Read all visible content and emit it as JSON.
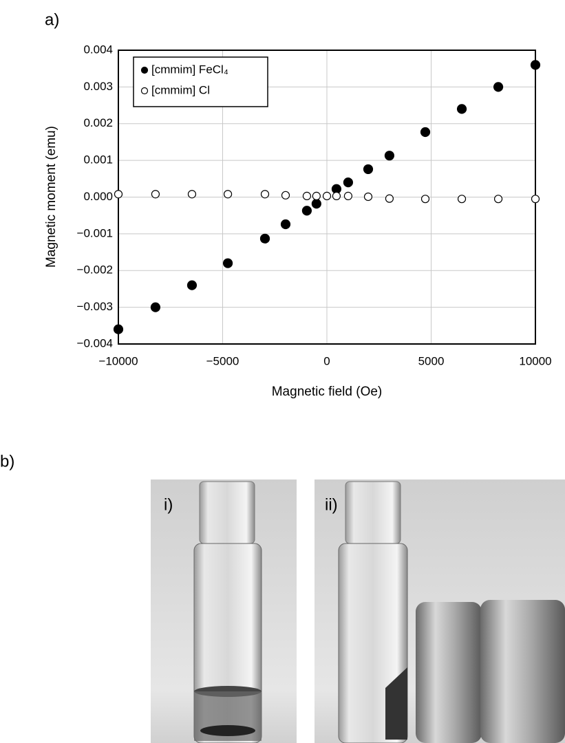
{
  "panel_labels": {
    "a": "a)",
    "b": "b)",
    "i": "i)",
    "ii": "ii)"
  },
  "chart_data": {
    "type": "scatter",
    "xlabel": "Magnetic field (Oe)",
    "ylabel": "Magnetic moment (emu)",
    "xlim": [
      -10000,
      10000
    ],
    "ylim": [
      -0.004,
      0.004
    ],
    "xticks": [
      {
        "value": -10000,
        "label": "−10000"
      },
      {
        "value": -5000,
        "label": "−5000"
      },
      0,
      5000,
      10000
    ],
    "yticks": [
      {
        "value": -0.004,
        "label": "−0.004"
      },
      {
        "value": -0.003,
        "label": "−0.003"
      },
      {
        "value": -0.002,
        "label": "−0.002"
      },
      {
        "value": -0.001,
        "label": "−0.001"
      },
      {
        "value": 0,
        "label": "0.000"
      },
      0.001,
      0.002,
      0.003,
      0.004
    ],
    "grid": true,
    "legend": "upper left",
    "series": [
      {
        "name": "[cmmim] FeCl₄",
        "color": "#000000",
        "filled": true,
        "x": [
          -10000,
          -8220,
          -6470,
          -4750,
          -2970,
          -1980,
          -960,
          -500,
          460,
          1020,
          1980,
          3000,
          4720,
          6470,
          8220,
          10000
        ],
        "values": [
          -0.0036,
          -0.003,
          -0.0024,
          -0.0018,
          -0.00113,
          -0.00074,
          -0.00037,
          -0.00018,
          0.00022,
          0.0004,
          0.00076,
          0.00113,
          0.00177,
          0.0024,
          0.003,
          0.0036
        ]
      },
      {
        "name": "[cmmim] Cl",
        "color": "#000000",
        "filled": false,
        "x": [
          -10000,
          -8220,
          -6470,
          -4750,
          -2970,
          -1980,
          -960,
          -500,
          0,
          460,
          1020,
          1980,
          3000,
          4720,
          6470,
          8220,
          10000
        ],
        "values": [
          8e-05,
          8e-05,
          8e-05,
          8e-05,
          8e-05,
          5e-05,
          3e-05,
          3e-05,
          3e-05,
          3e-05,
          3e-05,
          1e-05,
          -4e-05,
          -5e-05,
          -5e-05,
          -5e-05,
          -5e-05
        ]
      }
    ]
  }
}
